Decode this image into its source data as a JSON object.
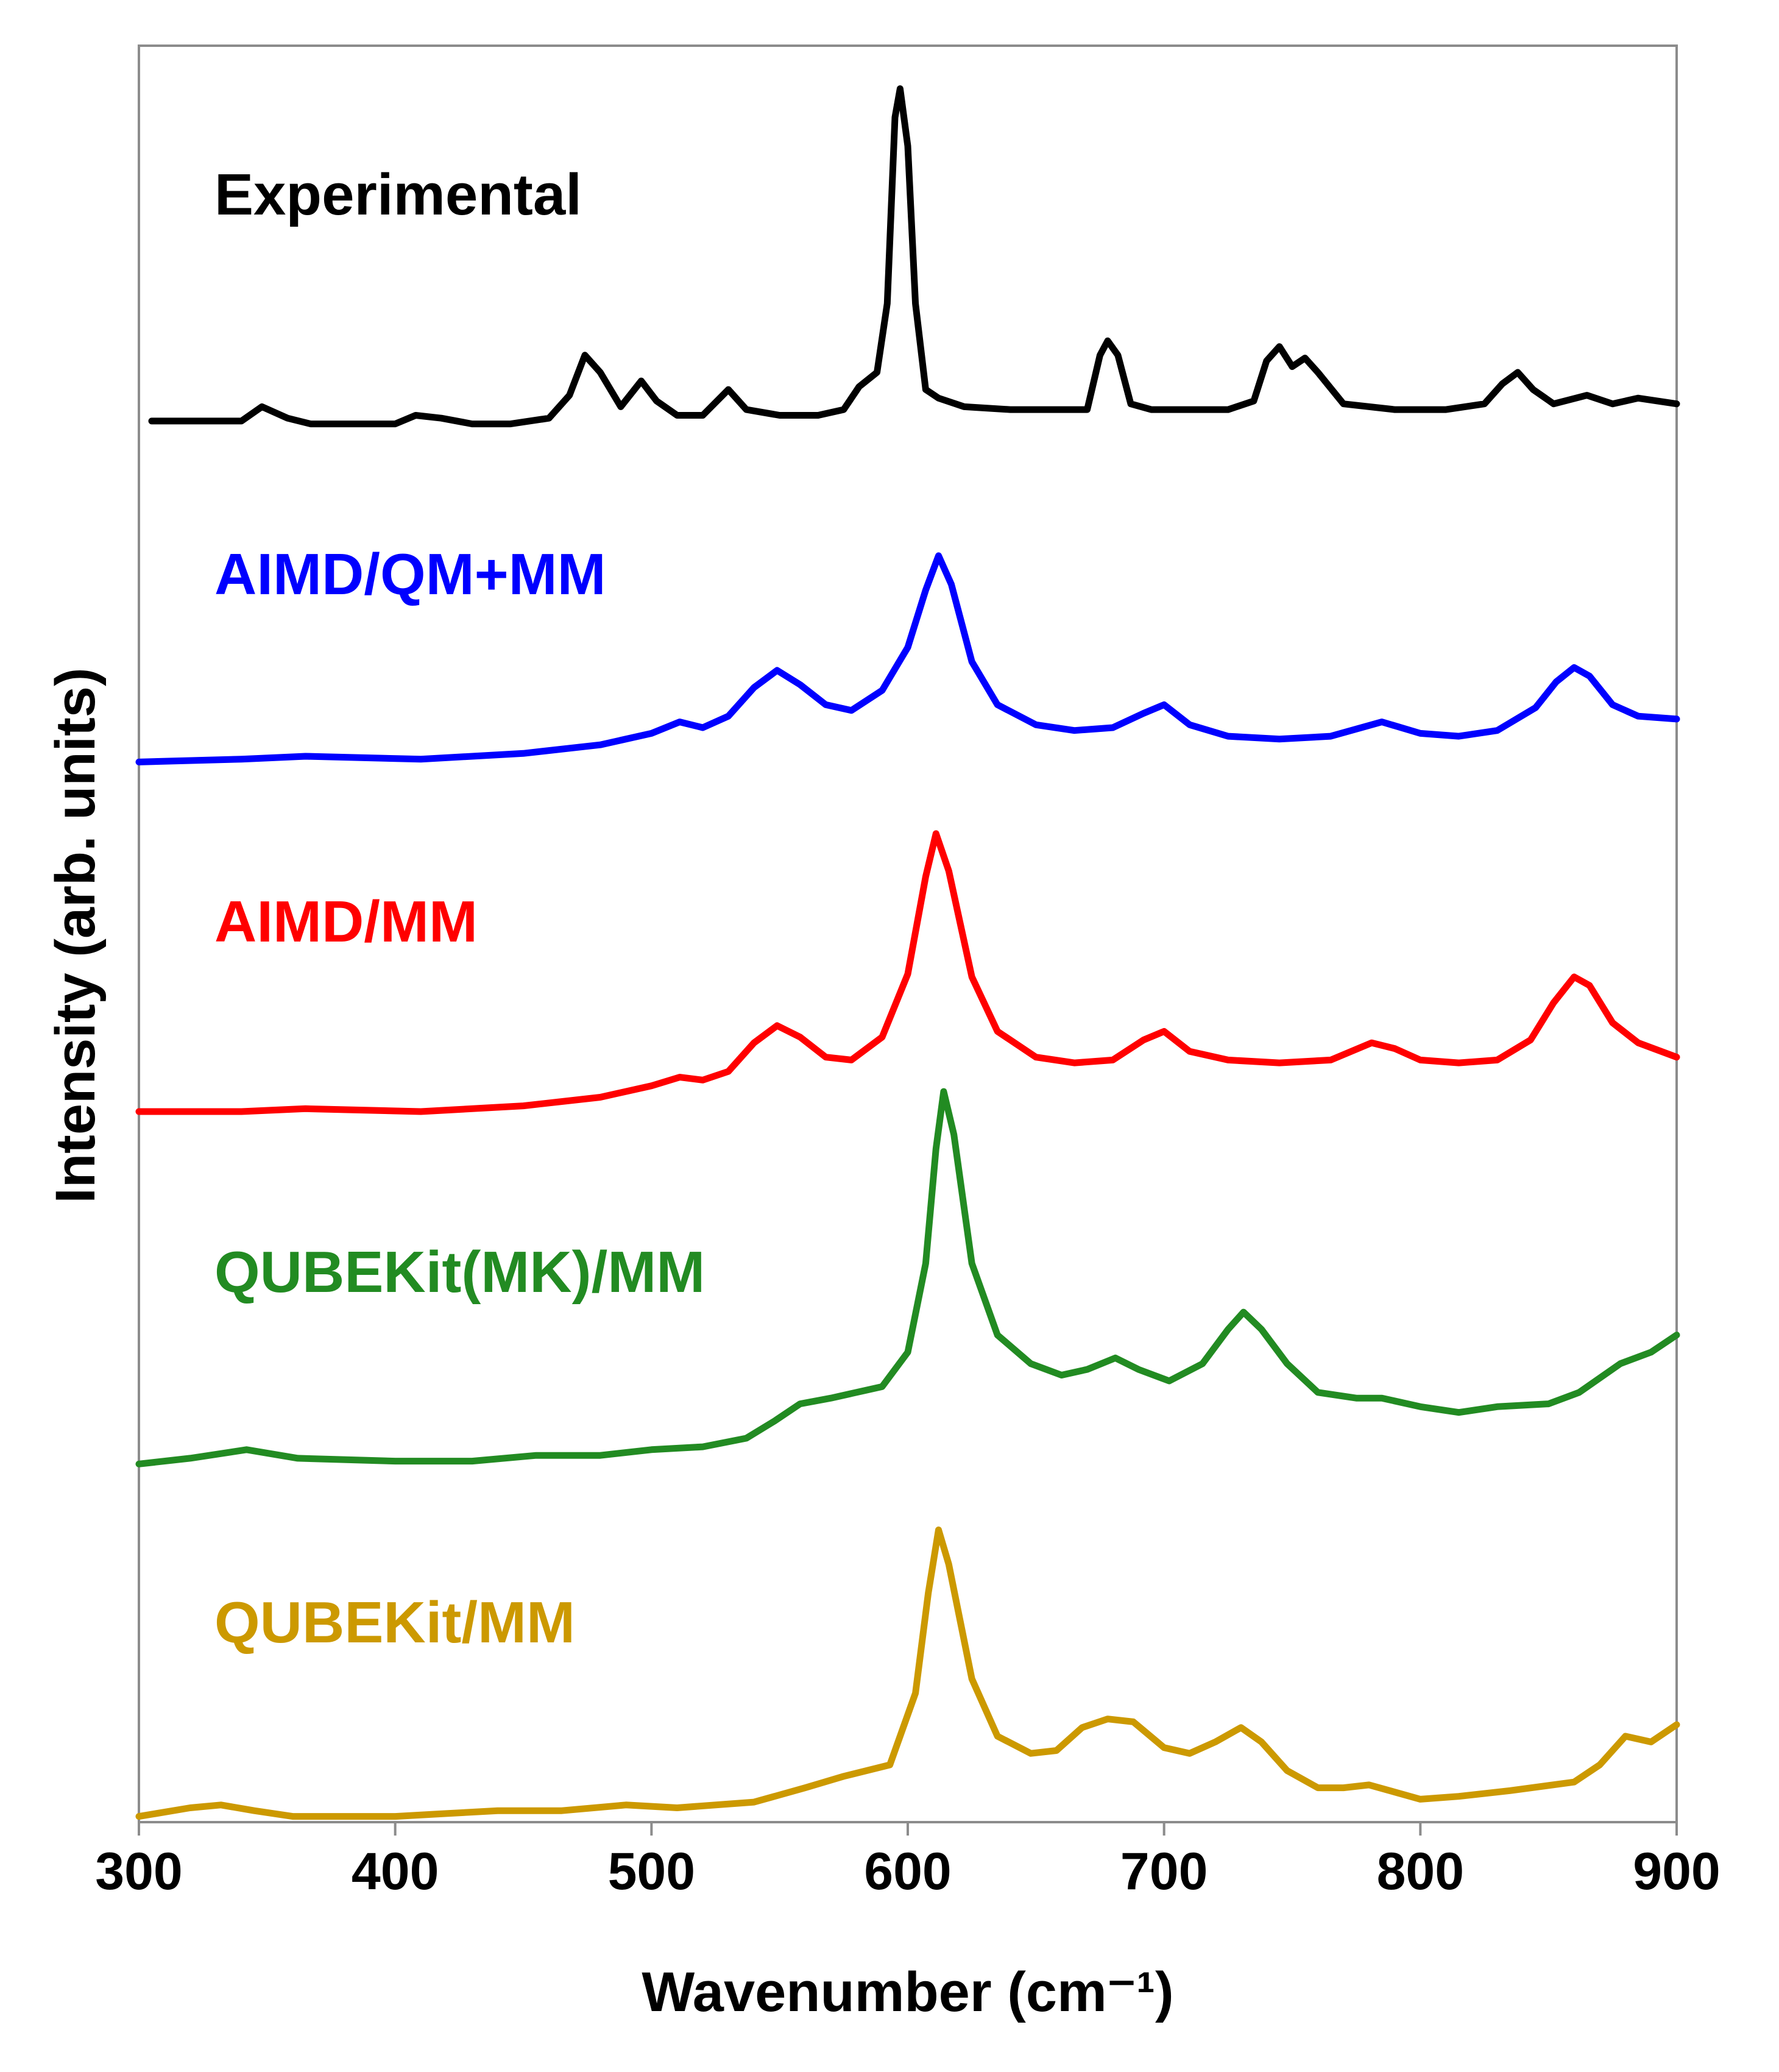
{
  "chart_data": {
    "type": "line",
    "xlabel": "Wavenumber (cm⁻¹)",
    "ylabel": "Intensity (arb. units)",
    "xlim": [
      300,
      900
    ],
    "xticks": [
      300,
      400,
      500,
      600,
      700,
      800,
      900
    ],
    "ylim": [
      0,
      6.2
    ],
    "grid": false,
    "series": [
      {
        "name": "Experimental",
        "color": "#000000",
        "points": [
          [
            305,
            4.89
          ],
          [
            340,
            4.89
          ],
          [
            348,
            4.94
          ],
          [
            358,
            4.9
          ],
          [
            367,
            4.88
          ],
          [
            385,
            4.88
          ],
          [
            400,
            4.88
          ],
          [
            408,
            4.91
          ],
          [
            418,
            4.9
          ],
          [
            430,
            4.88
          ],
          [
            445,
            4.88
          ],
          [
            460,
            4.9
          ],
          [
            468,
            4.98
          ],
          [
            474,
            5.12
          ],
          [
            480,
            5.06
          ],
          [
            488,
            4.94
          ],
          [
            496,
            5.03
          ],
          [
            502,
            4.96
          ],
          [
            510,
            4.91
          ],
          [
            520,
            4.91
          ],
          [
            530,
            5.0
          ],
          [
            537,
            4.93
          ],
          [
            550,
            4.91
          ],
          [
            565,
            4.91
          ],
          [
            575,
            4.93
          ],
          [
            581,
            5.01
          ],
          [
            588,
            5.06
          ],
          [
            592,
            5.3
          ],
          [
            595,
            5.95
          ],
          [
            597,
            6.05
          ],
          [
            600,
            5.85
          ],
          [
            603,
            5.3
          ],
          [
            607,
            5.0
          ],
          [
            612,
            4.97
          ],
          [
            622,
            4.94
          ],
          [
            640,
            4.93
          ],
          [
            660,
            4.93
          ],
          [
            670,
            4.93
          ],
          [
            675,
            5.12
          ],
          [
            678,
            5.17
          ],
          [
            682,
            5.12
          ],
          [
            687,
            4.95
          ],
          [
            695,
            4.93
          ],
          [
            710,
            4.93
          ],
          [
            725,
            4.93
          ],
          [
            735,
            4.96
          ],
          [
            740,
            5.1
          ],
          [
            745,
            5.15
          ],
          [
            750,
            5.08
          ],
          [
            755,
            5.11
          ],
          [
            760,
            5.06
          ],
          [
            770,
            4.95
          ],
          [
            790,
            4.93
          ],
          [
            810,
            4.93
          ],
          [
            825,
            4.95
          ],
          [
            832,
            5.02
          ],
          [
            838,
            5.06
          ],
          [
            844,
            5.0
          ],
          [
            852,
            4.95
          ],
          [
            865,
            4.98
          ],
          [
            875,
            4.95
          ],
          [
            885,
            4.97
          ],
          [
            900,
            4.95
          ]
        ]
      },
      {
        "name": "AIMD/QM+MM",
        "color": "#0000FF",
        "points": [
          [
            300,
            3.7
          ],
          [
            340,
            3.71
          ],
          [
            365,
            3.72
          ],
          [
            410,
            3.71
          ],
          [
            450,
            3.73
          ],
          [
            480,
            3.76
          ],
          [
            500,
            3.8
          ],
          [
            511,
            3.84
          ],
          [
            520,
            3.82
          ],
          [
            530,
            3.86
          ],
          [
            540,
            3.96
          ],
          [
            549,
            4.02
          ],
          [
            558,
            3.97
          ],
          [
            568,
            3.9
          ],
          [
            578,
            3.88
          ],
          [
            590,
            3.95
          ],
          [
            600,
            4.1
          ],
          [
            607,
            4.3
          ],
          [
            612,
            4.42
          ],
          [
            617,
            4.32
          ],
          [
            625,
            4.05
          ],
          [
            635,
            3.9
          ],
          [
            650,
            3.83
          ],
          [
            665,
            3.81
          ],
          [
            680,
            3.82
          ],
          [
            692,
            3.87
          ],
          [
            700,
            3.9
          ],
          [
            710,
            3.83
          ],
          [
            725,
            3.79
          ],
          [
            745,
            3.78
          ],
          [
            765,
            3.79
          ],
          [
            785,
            3.84
          ],
          [
            800,
            3.8
          ],
          [
            815,
            3.79
          ],
          [
            830,
            3.81
          ],
          [
            845,
            3.89
          ],
          [
            853,
            3.98
          ],
          [
            860,
            4.03
          ],
          [
            866,
            4.0
          ],
          [
            875,
            3.9
          ],
          [
            885,
            3.86
          ],
          [
            900,
            3.85
          ]
        ]
      },
      {
        "name": "AIMD/MM",
        "color": "#FF0000",
        "points": [
          [
            300,
            2.48
          ],
          [
            340,
            2.48
          ],
          [
            365,
            2.49
          ],
          [
            410,
            2.48
          ],
          [
            450,
            2.5
          ],
          [
            480,
            2.53
          ],
          [
            500,
            2.57
          ],
          [
            511,
            2.6
          ],
          [
            520,
            2.59
          ],
          [
            530,
            2.62
          ],
          [
            540,
            2.72
          ],
          [
            549,
            2.78
          ],
          [
            558,
            2.74
          ],
          [
            568,
            2.67
          ],
          [
            578,
            2.66
          ],
          [
            590,
            2.74
          ],
          [
            600,
            2.96
          ],
          [
            607,
            3.3
          ],
          [
            611,
            3.45
          ],
          [
            616,
            3.32
          ],
          [
            625,
            2.95
          ],
          [
            635,
            2.76
          ],
          [
            650,
            2.67
          ],
          [
            665,
            2.65
          ],
          [
            680,
            2.66
          ],
          [
            692,
            2.73
          ],
          [
            700,
            2.76
          ],
          [
            710,
            2.69
          ],
          [
            725,
            2.66
          ],
          [
            745,
            2.65
          ],
          [
            765,
            2.66
          ],
          [
            781,
            2.72
          ],
          [
            790,
            2.7
          ],
          [
            800,
            2.66
          ],
          [
            815,
            2.65
          ],
          [
            830,
            2.66
          ],
          [
            843,
            2.73
          ],
          [
            852,
            2.86
          ],
          [
            860,
            2.95
          ],
          [
            866,
            2.92
          ],
          [
            875,
            2.79
          ],
          [
            885,
            2.72
          ],
          [
            900,
            2.67
          ]
        ]
      },
      {
        "name": "QUBEKit(MK)/MM",
        "color": "#228B22",
        "points": [
          [
            300,
            1.25
          ],
          [
            320,
            1.27
          ],
          [
            342,
            1.3
          ],
          [
            362,
            1.27
          ],
          [
            400,
            1.26
          ],
          [
            430,
            1.26
          ],
          [
            455,
            1.28
          ],
          [
            480,
            1.28
          ],
          [
            500,
            1.3
          ],
          [
            520,
            1.31
          ],
          [
            537,
            1.34
          ],
          [
            548,
            1.4
          ],
          [
            558,
            1.46
          ],
          [
            570,
            1.48
          ],
          [
            590,
            1.52
          ],
          [
            600,
            1.64
          ],
          [
            607,
            1.95
          ],
          [
            611,
            2.35
          ],
          [
            614,
            2.55
          ],
          [
            618,
            2.4
          ],
          [
            625,
            1.95
          ],
          [
            635,
            1.7
          ],
          [
            648,
            1.6
          ],
          [
            660,
            1.56
          ],
          [
            670,
            1.58
          ],
          [
            681,
            1.62
          ],
          [
            690,
            1.58
          ],
          [
            702,
            1.54
          ],
          [
            715,
            1.6
          ],
          [
            725,
            1.72
          ],
          [
            731,
            1.78
          ],
          [
            738,
            1.72
          ],
          [
            748,
            1.6
          ],
          [
            760,
            1.5
          ],
          [
            775,
            1.48
          ],
          [
            785,
            1.48
          ],
          [
            800,
            1.45
          ],
          [
            815,
            1.43
          ],
          [
            830,
            1.45
          ],
          [
            850,
            1.46
          ],
          [
            862,
            1.5
          ],
          [
            878,
            1.6
          ],
          [
            890,
            1.64
          ],
          [
            900,
            1.7
          ]
        ]
      },
      {
        "name": "QUBEKit/MM",
        "color": "#CC9900",
        "points": [
          [
            300,
            0.02
          ],
          [
            320,
            0.05
          ],
          [
            332,
            0.06
          ],
          [
            345,
            0.04
          ],
          [
            360,
            0.02
          ],
          [
            400,
            0.02
          ],
          [
            420,
            0.03
          ],
          [
            440,
            0.04
          ],
          [
            465,
            0.04
          ],
          [
            490,
            0.06
          ],
          [
            510,
            0.05
          ],
          [
            540,
            0.07
          ],
          [
            560,
            0.12
          ],
          [
            575,
            0.16
          ],
          [
            593,
            0.2
          ],
          [
            603,
            0.45
          ],
          [
            608,
            0.8
          ],
          [
            612,
            1.02
          ],
          [
            616,
            0.9
          ],
          [
            625,
            0.5
          ],
          [
            635,
            0.3
          ],
          [
            648,
            0.24
          ],
          [
            658,
            0.25
          ],
          [
            668,
            0.33
          ],
          [
            678,
            0.36
          ],
          [
            688,
            0.35
          ],
          [
            700,
            0.26
          ],
          [
            710,
            0.24
          ],
          [
            720,
            0.28
          ],
          [
            730,
            0.33
          ],
          [
            738,
            0.28
          ],
          [
            748,
            0.18
          ],
          [
            760,
            0.12
          ],
          [
            770,
            0.12
          ],
          [
            780,
            0.13
          ],
          [
            800,
            0.08
          ],
          [
            815,
            0.09
          ],
          [
            835,
            0.11
          ],
          [
            860,
            0.14
          ],
          [
            870,
            0.2
          ],
          [
            880,
            0.3
          ],
          [
            890,
            0.28
          ],
          [
            900,
            0.34
          ]
        ]
      }
    ]
  }
}
